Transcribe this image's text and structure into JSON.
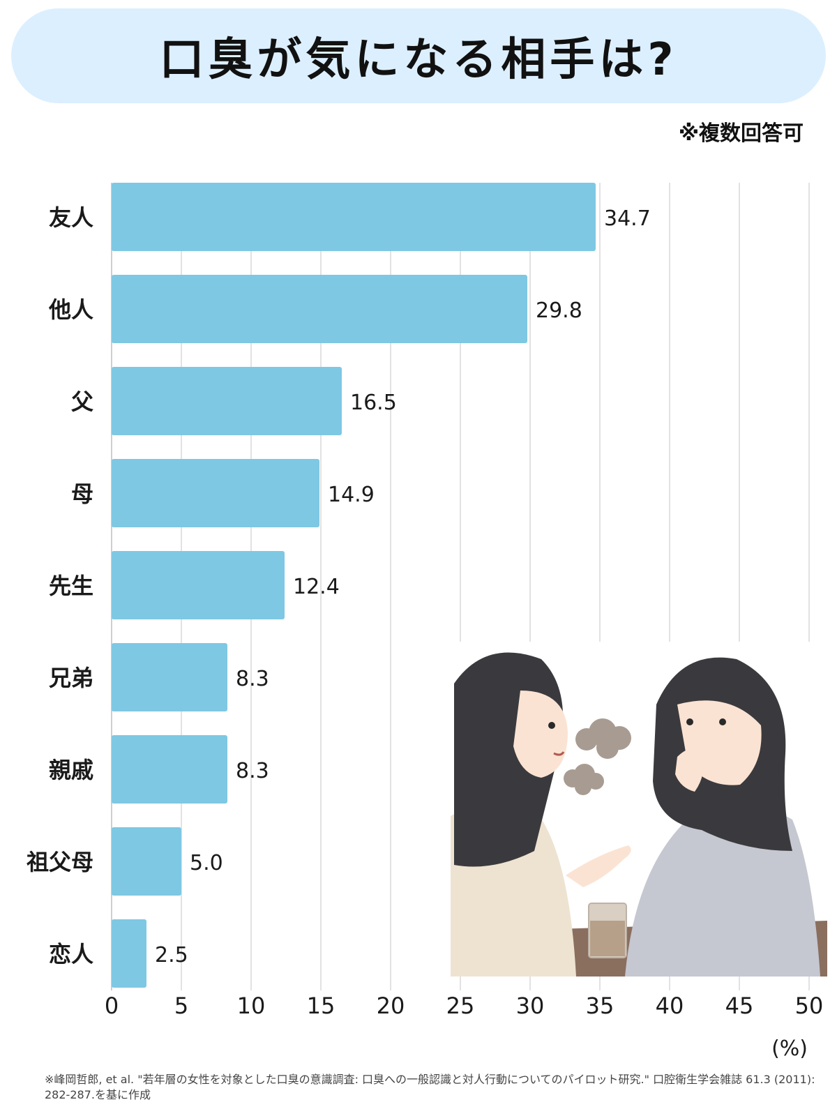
{
  "title": "口臭が気になる相手は?",
  "note": "※複数回答可",
  "source": "※峰岡哲郎, et al. \"若年層の女性を対象とした口臭の意識調査: 口臭への一般認識と対人行動についてのパイロット研究.\" 口腔衛生学会雑誌 61.3 (2011): 282-287.を基に作成",
  "colors": {
    "bar": "#7ec8e3",
    "grid": "#d9d9d9",
    "banner": "#dcefff"
  },
  "chart_data": {
    "type": "bar",
    "orientation": "horizontal",
    "categories": [
      "友人",
      "他人",
      "父",
      "母",
      "先生",
      "兄弟",
      "親戚",
      "祖父母",
      "恋人"
    ],
    "values": [
      34.7,
      29.8,
      16.5,
      14.9,
      12.4,
      8.3,
      8.3,
      5.0,
      2.5
    ],
    "value_labels": [
      "34.7",
      "29.8",
      "16.5",
      "14.9",
      "12.4",
      "8.3",
      "8.3",
      "5.0",
      "2.5"
    ],
    "xlim": [
      0,
      50
    ],
    "xticks": [
      0,
      5,
      10,
      15,
      20,
      25,
      30,
      35,
      40,
      45,
      50
    ],
    "xunit": "(%)",
    "grid": true
  }
}
